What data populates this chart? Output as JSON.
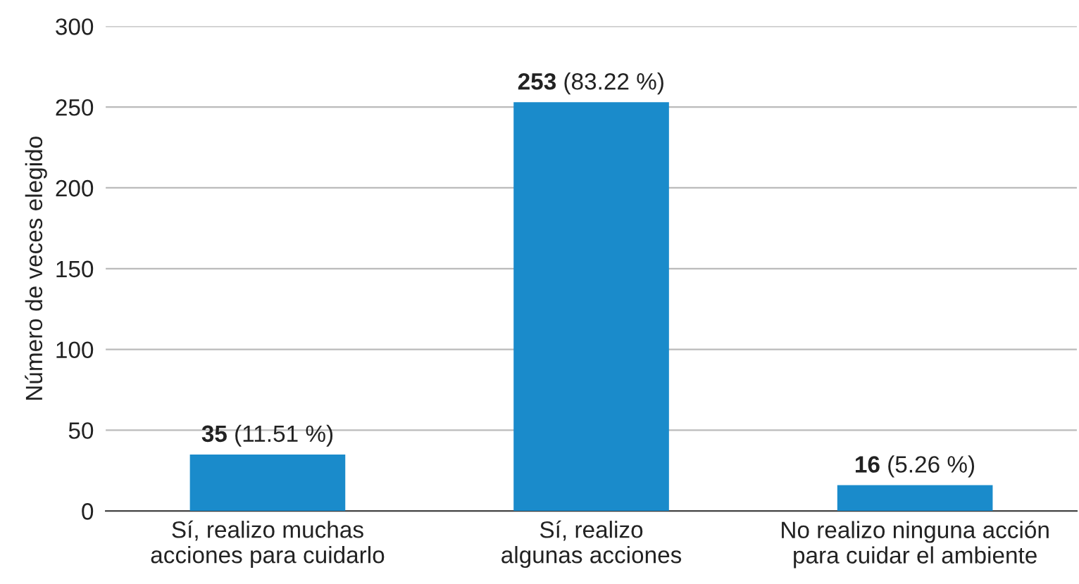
{
  "chart_data": {
    "type": "bar",
    "ylabel": "Número de veces elegido",
    "categories": [
      "Sí, realizo muchas\nacciones para cuidarlo",
      "Sí, realizo\nalgunas acciones",
      "No realizo ninguna acción\npara cuidar el ambiente"
    ],
    "values": [
      35,
      253,
      16
    ],
    "color": "#1a8bcb",
    "value_labels": [
      "35 (11.51 %)",
      "253 (83.22 %)",
      "16 (5.26 %)"
    ],
    "ylim": [
      0,
      300
    ],
    "yticks": [
      0,
      50,
      100,
      150,
      200,
      250,
      300
    ],
    "grid": "y"
  }
}
